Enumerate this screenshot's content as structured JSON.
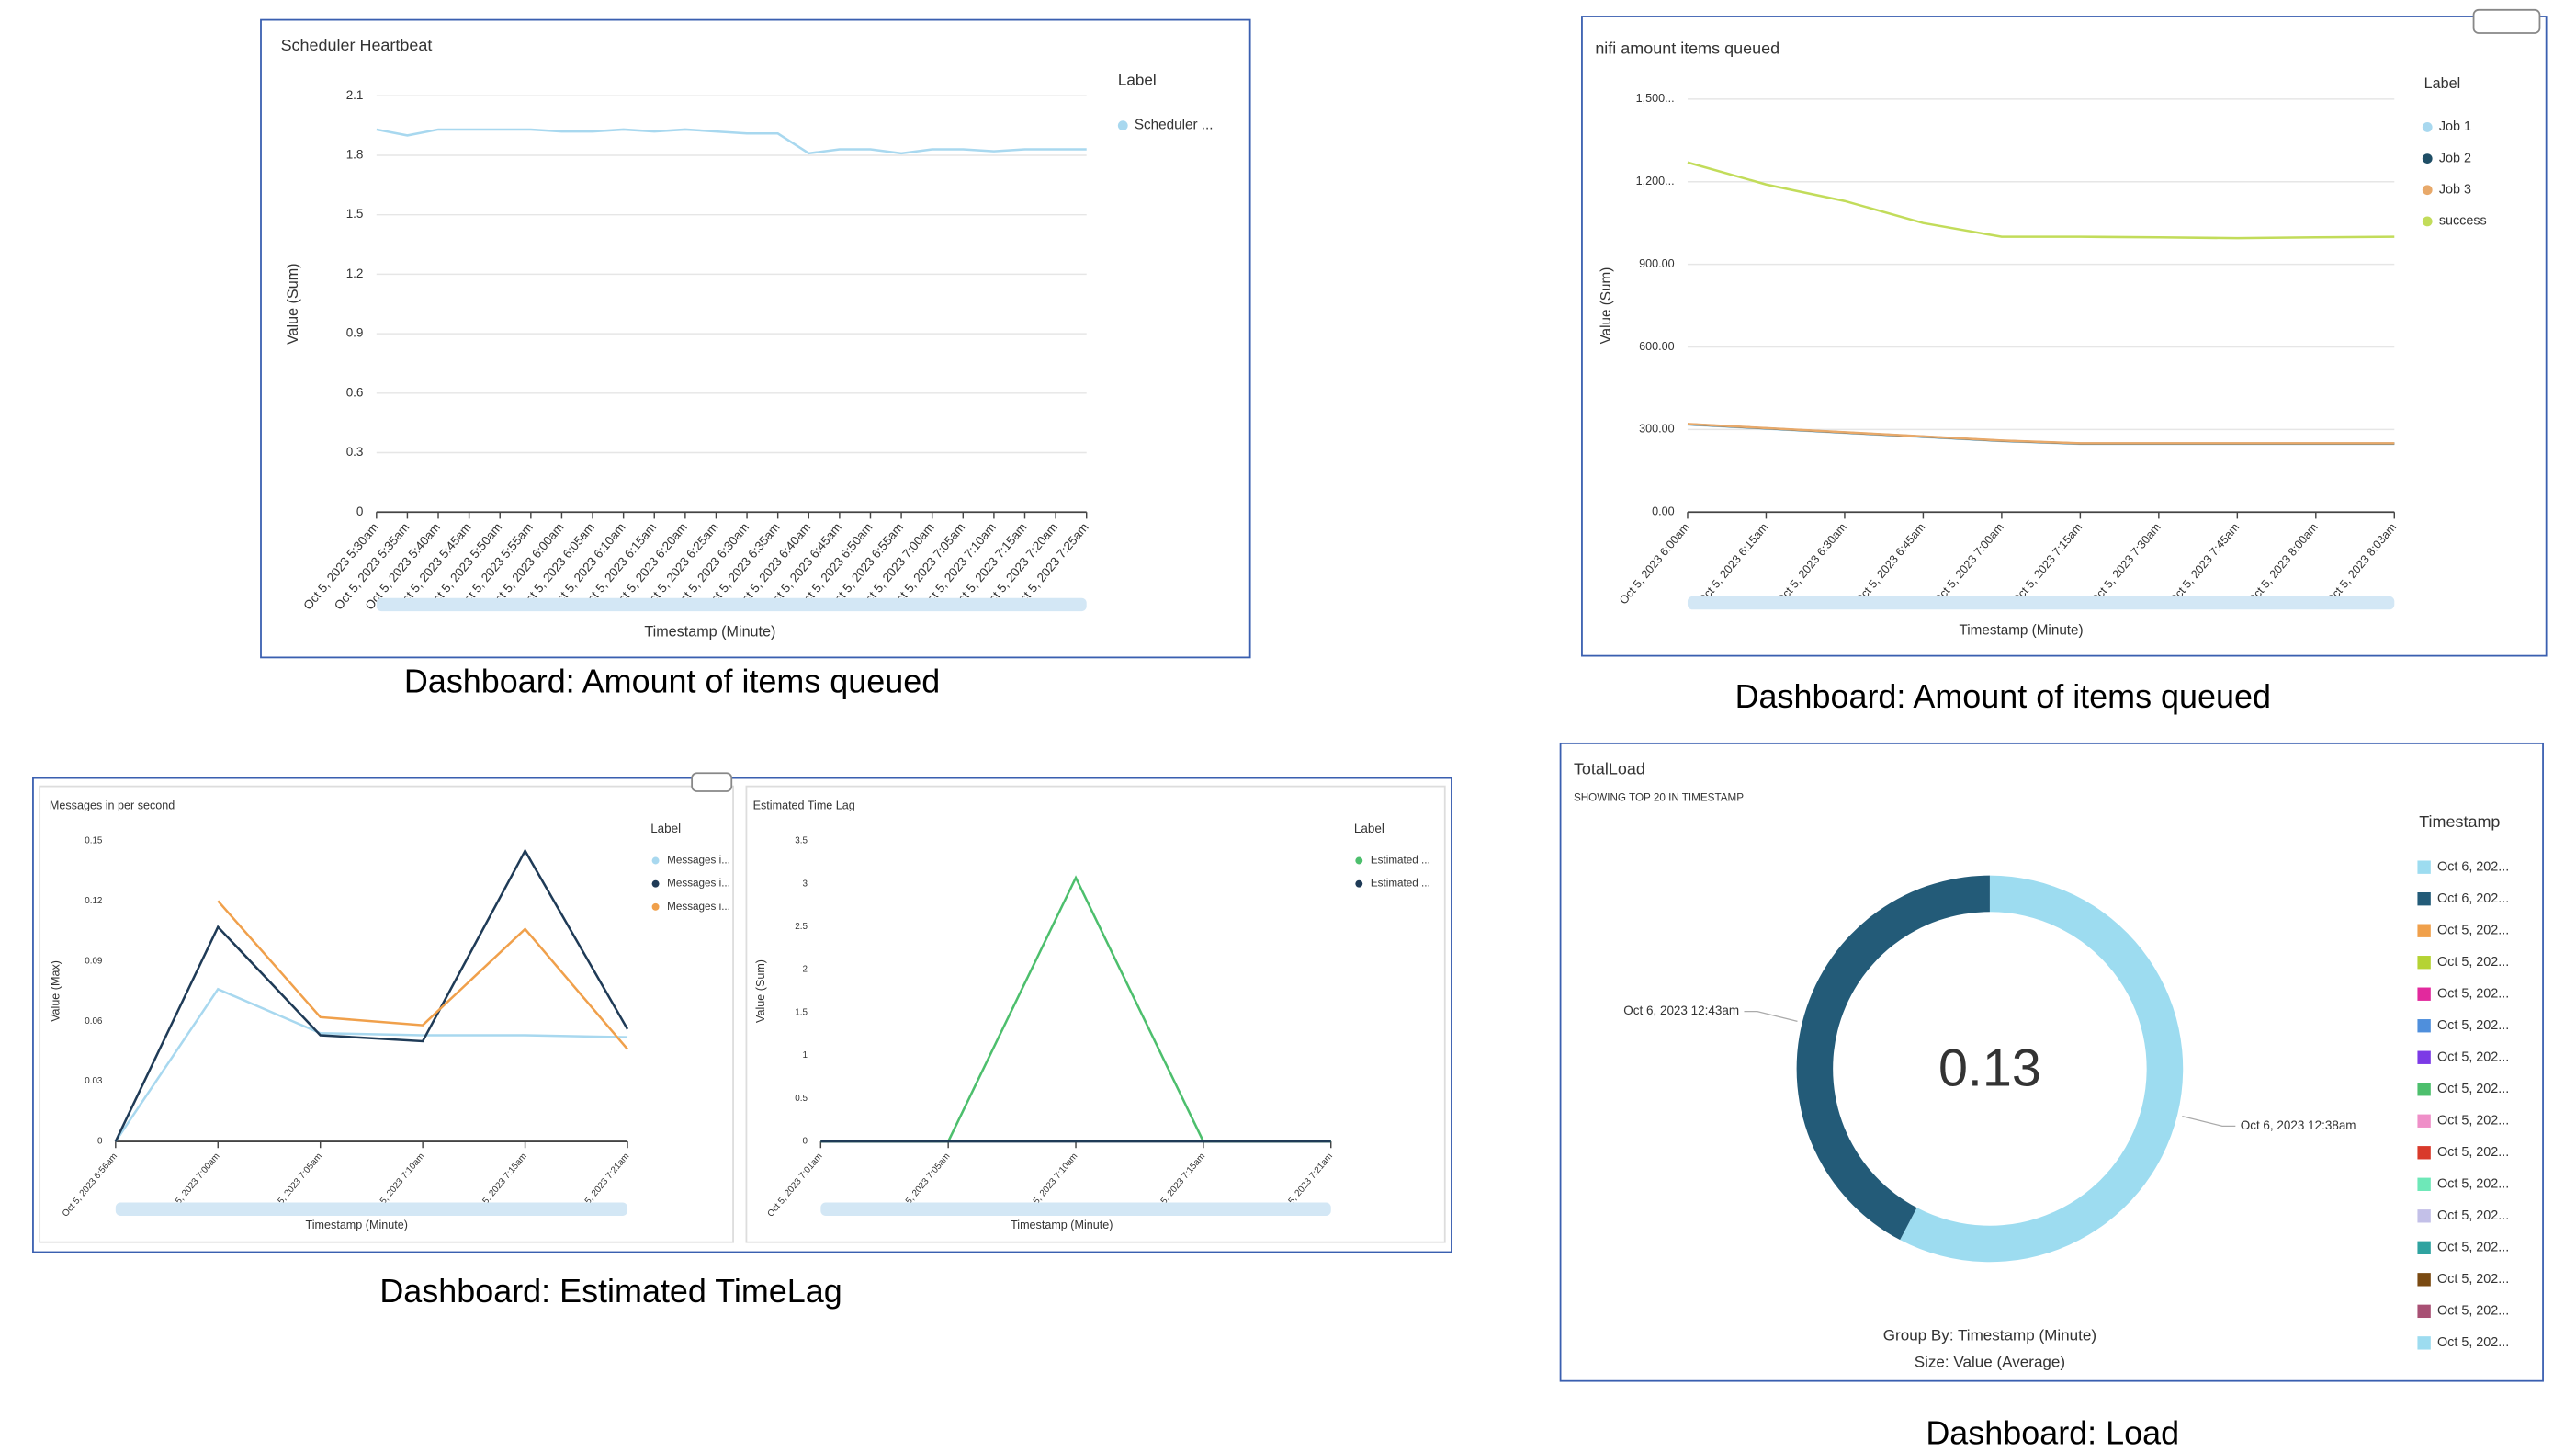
{
  "captions": [
    "Dashboard: Amount of items queued",
    "Dashboard: Amount of items queued",
    "Dashboard: Estimated TimeLag",
    "Dashboard: Load"
  ],
  "chart_data": [
    {
      "type": "line",
      "title": "Scheduler Heartbeat",
      "y_label": "Value (Sum)",
      "x_label": "Timestamp (Minute)",
      "legend_title": "Label",
      "categories": [
        "Oct 5, 2023 5:30am",
        "Oct 5, 2023 5:35am",
        "Oct 5, 2023 5:40am",
        "Oct 5, 2023 5:45am",
        "Oct 5, 2023 5:50am",
        "Oct 5, 2023 5:55am",
        "Oct 5, 2023 6:00am",
        "Oct 5, 2023 6:05am",
        "Oct 5, 2023 6:10am",
        "Oct 5, 2023 6:15am",
        "Oct 5, 2023 6:20am",
        "Oct 5, 2023 6:25am",
        "Oct 5, 2023 6:30am",
        "Oct 5, 2023 6:35am",
        "Oct 5, 2023 6:40am",
        "Oct 5, 2023 6:45am",
        "Oct 5, 2023 6:50am",
        "Oct 5, 2023 6:55am",
        "Oct 5, 2023 7:00am",
        "Oct 5, 2023 7:05am",
        "Oct 5, 2023 7:10am",
        "Oct 5, 2023 7:15am",
        "Oct 5, 2023 7:20am",
        "Oct 5, 2023 7:25am"
      ],
      "series": [
        {
          "name": "Scheduler ...",
          "color": "#a8d8ef",
          "values": [
            1.93,
            1.9,
            1.93,
            1.93,
            1.93,
            1.93,
            1.92,
            1.92,
            1.93,
            1.92,
            1.93,
            1.92,
            1.91,
            1.91,
            1.81,
            1.83,
            1.83,
            1.81,
            1.83,
            1.83,
            1.82,
            1.83,
            1.83,
            1.83
          ]
        }
      ],
      "ylim": [
        0,
        2.1
      ],
      "yticks": [
        0,
        0.3,
        0.6,
        0.9,
        1.2,
        1.5,
        1.8,
        2.1
      ],
      "grid": true
    },
    {
      "type": "line",
      "title": "nifi amount items queued",
      "y_label": "Value (Sum)",
      "x_label": "Timestamp (Minute)",
      "legend_title": "Label",
      "categories": [
        "Oct 5, 2023 6:00am",
        "Oct 5, 2023 6:15am",
        "Oct 5, 2023 6:30am",
        "Oct 5, 2023 6:45am",
        "Oct 5, 2023 7:00am",
        "Oct 5, 2023 7:15am",
        "Oct 5, 2023 7:30am",
        "Oct 5, 2023 7:45am",
        "Oct 5, 2023 8:00am",
        "Oct 5, 2023 8:03am"
      ],
      "series": [
        {
          "name": "Job 1",
          "color": "#a8d8ef",
          "values": [
            318,
            303,
            288,
            273,
            258,
            248,
            248,
            248,
            248,
            248
          ]
        },
        {
          "name": "Job 2",
          "color": "#1f4e66",
          "values": [
            319,
            304,
            289,
            274,
            259,
            249,
            249,
            249,
            249,
            249
          ]
        },
        {
          "name": "Job 3",
          "color": "#e8a96a",
          "values": [
            320,
            305,
            290,
            275,
            260,
            250,
            250,
            250,
            250,
            250
          ]
        },
        {
          "name": "success",
          "color": "#c2dc5a",
          "values": [
            1270,
            1190,
            1130,
            1050,
            1000,
            1000,
            998,
            995,
            998,
            1000
          ]
        }
      ],
      "ylim": [
        0,
        1500
      ],
      "yticks": [
        {
          "value": 0,
          "label": "0.00"
        },
        {
          "value": 300,
          "label": "300.00"
        },
        {
          "value": 600,
          "label": "600.00"
        },
        {
          "value": 900,
          "label": "900.00"
        },
        {
          "value": 1200,
          "label": "1,200..."
        },
        {
          "value": 1500,
          "label": "1,500..."
        }
      ],
      "grid": true
    },
    {
      "type": "line",
      "title": "Messages in per second",
      "y_label": "Value (Max)",
      "x_label": "Timestamp (Minute)",
      "legend_title": "Label",
      "categories": [
        "Oct 5, 2023 6:56am",
        "Oct 5, 2023 7:00am",
        "Oct 5, 2023 7:05am",
        "Oct 5, 2023 7:10am",
        "Oct 5, 2023 7:15am",
        "Oct 5, 2023 7:21am"
      ],
      "series": [
        {
          "name": "Messages i...",
          "color": "#a8d8ef",
          "values": [
            0,
            0.076,
            0.054,
            0.053,
            0.053,
            0.052
          ]
        },
        {
          "name": "Messages i...",
          "color": "#1f3b57",
          "values": [
            0,
            0.107,
            0.053,
            0.05,
            0.145,
            0.056
          ]
        },
        {
          "name": "Messages i...",
          "color": "#f0a04b",
          "values": [
            null,
            0.12,
            0.062,
            0.058,
            0.106,
            0.046
          ]
        }
      ],
      "ylim": [
        0,
        0.15
      ],
      "yticks": [
        0,
        0.03,
        0.06,
        0.09,
        0.12,
        0.15
      ],
      "grid": false
    },
    {
      "type": "line",
      "title": "Estimated Time Lag",
      "y_label": "Value (Sum)",
      "x_label": "Timestamp (Minute)",
      "legend_title": "Label",
      "categories": [
        "Oct 5, 2023 7:01am",
        "Oct 5, 2023 7:05am",
        "Oct 5, 2023 7:10am",
        "Oct 5, 2023 7:15am",
        "Oct 5, 2023 7:21am"
      ],
      "series": [
        {
          "name": "Estimated ...",
          "color": "#4dbf6d",
          "values": [
            0,
            0,
            3.07,
            0,
            0
          ]
        },
        {
          "name": "Estimated ...",
          "color": "#1f3b57",
          "values": [
            0,
            0,
            0,
            0,
            0
          ]
        }
      ],
      "ylim": [
        0,
        3.5
      ],
      "yticks": [
        0,
        0.5,
        1,
        1.5,
        2,
        2.5,
        3,
        3.5
      ],
      "grid": false
    },
    {
      "type": "donut",
      "title": "TotalLoad",
      "subtitle": "SHOWING TOP 20 IN TIMESTAMP",
      "center_label": "0.13",
      "categories": [
        "Oct 6, 2023 12:38am",
        "Oct 6, 2023 12:43am"
      ],
      "values": [
        0.075,
        0.055
      ],
      "colors": [
        "#9ddcf0",
        "#235b78"
      ],
      "legend_title": "Timestamp",
      "legend": [
        {
          "label": "Oct 6, 202...",
          "color": "#9ddcf0"
        },
        {
          "label": "Oct 6, 202...",
          "color": "#235b78"
        },
        {
          "label": "Oct 5, 202...",
          "color": "#f0a04b"
        },
        {
          "label": "Oct 5, 202...",
          "color": "#b5d334"
        },
        {
          "label": "Oct 5, 202...",
          "color": "#e2299d"
        },
        {
          "label": "Oct 5, 202...",
          "color": "#4f8fdc"
        },
        {
          "label": "Oct 5, 202...",
          "color": "#7c3ae6"
        },
        {
          "label": "Oct 5, 202...",
          "color": "#4dbf6d"
        },
        {
          "label": "Oct 5, 202...",
          "color": "#ef8fc8"
        },
        {
          "label": "Oct 5, 202...",
          "color": "#d93a2b"
        },
        {
          "label": "Oct 5, 202...",
          "color": "#6ee8b8"
        },
        {
          "label": "Oct 5, 202...",
          "color": "#c3c0e8"
        },
        {
          "label": "Oct 5, 202...",
          "color": "#2fa3a0"
        },
        {
          "label": "Oct 5, 202...",
          "color": "#7a4a12"
        },
        {
          "label": "Oct 5, 202...",
          "color": "#a85074"
        },
        {
          "label": "Oct 5, 202...",
          "color": "#9ddcf0"
        }
      ],
      "footer": [
        "Group By: Timestamp (Minute)",
        "Size: Value (Average)"
      ]
    }
  ]
}
